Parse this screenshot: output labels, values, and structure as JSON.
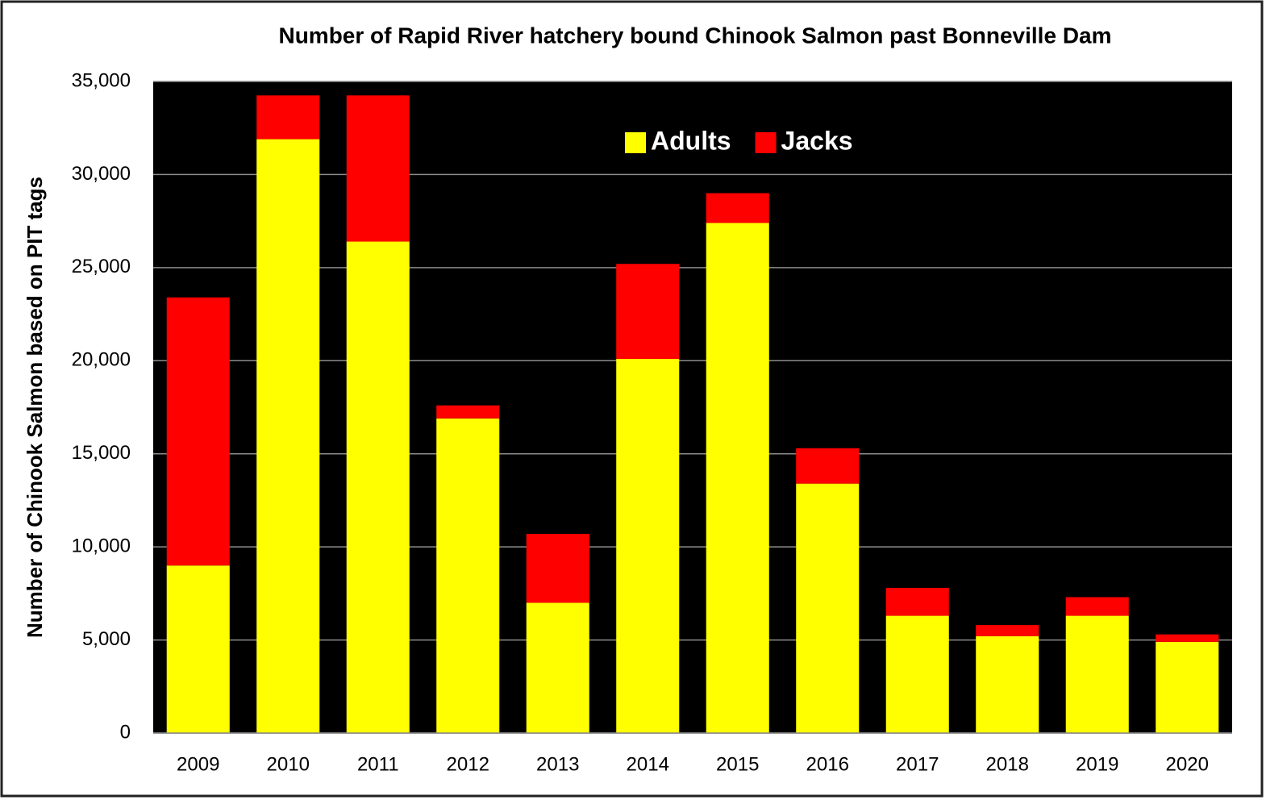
{
  "chart_data": {
    "type": "stacked_bar",
    "title": "Number of Rapid River hatchery bound Chinook Salmon past Bonneville Dam",
    "y_label": "Number of Chinook Salmon based on PIT tags",
    "categories": [
      "2009",
      "2010",
      "2011",
      "2012",
      "2013",
      "2014",
      "2015",
      "2016",
      "2017",
      "2018",
      "2019",
      "2020"
    ],
    "series": [
      {
        "name": "Adults",
        "color": "#ffff00",
        "values": [
          9000,
          31900,
          26400,
          16900,
          7000,
          20100,
          27400,
          13400,
          6300,
          5200,
          6300,
          4900
        ]
      },
      {
        "name": "Jacks",
        "color": "#ff0000",
        "values": [
          14400,
          2350,
          7850,
          700,
          3700,
          5100,
          1600,
          1900,
          1500,
          600,
          1000,
          400
        ]
      }
    ],
    "ylim": [
      0,
      35000
    ],
    "yticks": [
      0,
      {
        "value": 5000,
        "label": "5,000"
      },
      {
        "value": 10000,
        "label": "10,000"
      },
      {
        "value": 15000,
        "label": "15,000"
      },
      {
        "value": 20000,
        "label": "20,000"
      },
      {
        "value": 25000,
        "label": "25,000"
      },
      {
        "value": 30000,
        "label": "30,000"
      },
      {
        "value": 35000,
        "label": "35,000"
      }
    ],
    "grid": true,
    "legend": "top",
    "plot_background": "#000000"
  }
}
